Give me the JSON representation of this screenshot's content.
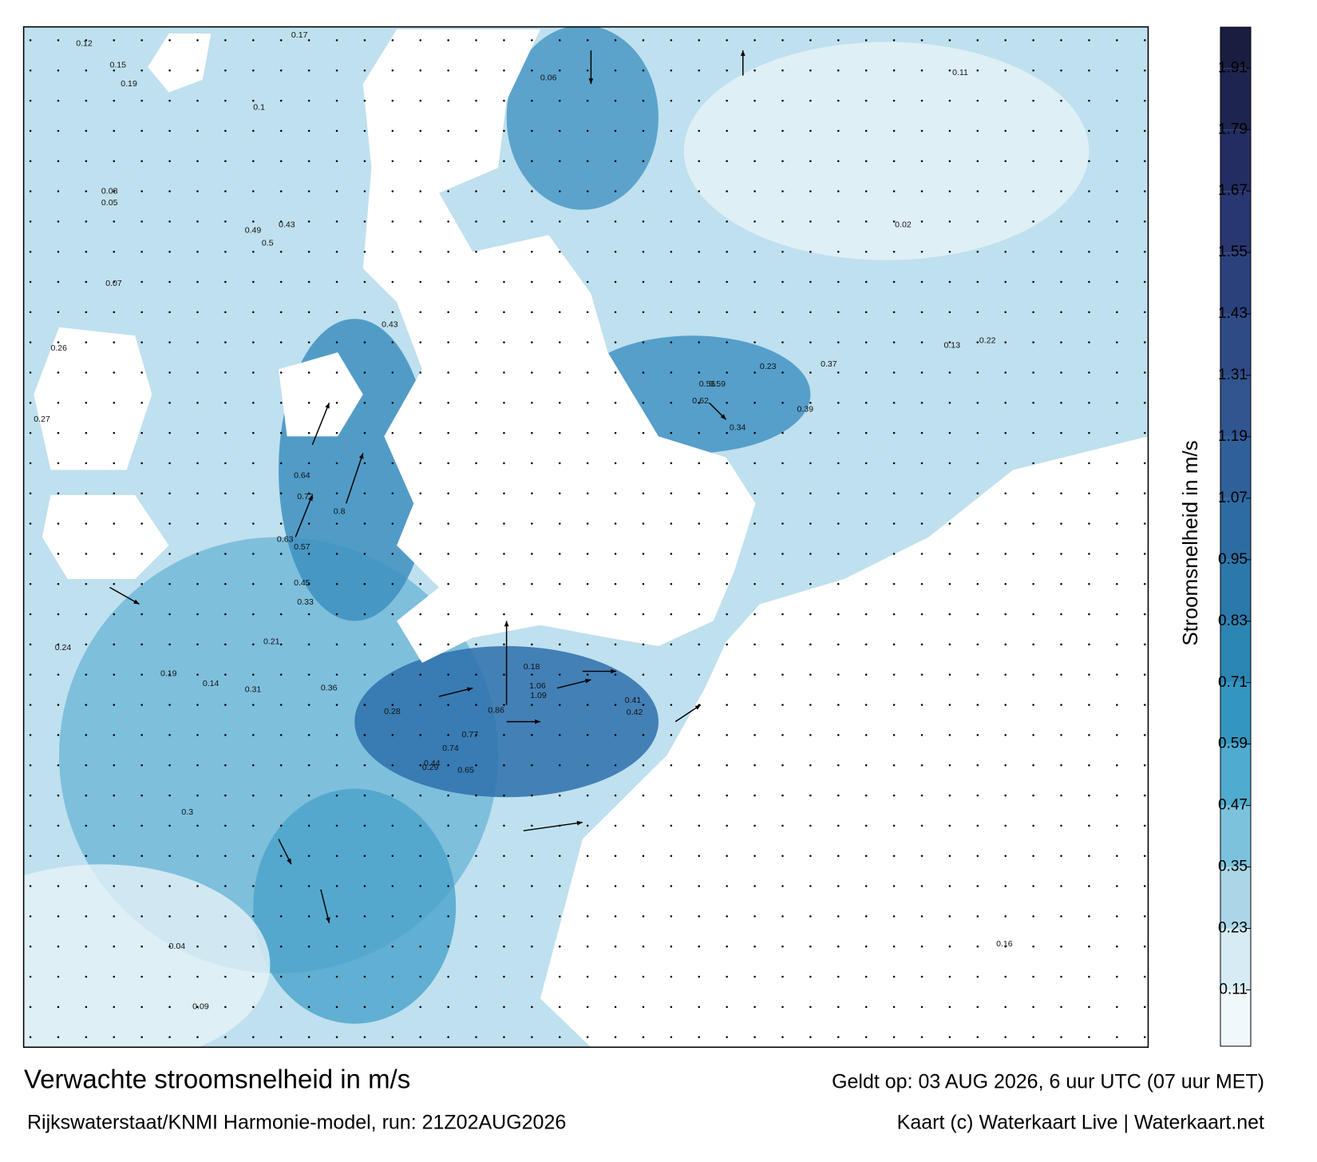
{
  "title": "Verwachte stroomsnelheid in m/s",
  "subtitle": "Rijkswaterstaat/KNMI Harmonie-model, run: 21Z02AUG2026",
  "valid_time": "Geldt op: 03 AUG 2026, 6 uur UTC (07 uur MET)",
  "credit": "Kaart (c) Waterkaart Live | Waterkaart.net",
  "colorbar": {
    "label": "Stroomsnelheid in m/s",
    "lim": [
      0,
      1.99
    ],
    "ticks": [
      0.11,
      0.23,
      0.35,
      0.47,
      0.59,
      0.71,
      0.83,
      0.95,
      1.07,
      1.19,
      1.31,
      1.43,
      1.55,
      1.67,
      1.79,
      1.91
    ],
    "band_colors": [
      "#f1f8fb",
      "#d6ebf3",
      "#aad6e7",
      "#7cc2dc",
      "#4fabcf",
      "#3296c0",
      "#2b86b3",
      "#2b78aa",
      "#2d6ca2",
      "#2f6099",
      "#30558f",
      "#2e4b86",
      "#2b417c",
      "#283770",
      "#232d62",
      "#1d2450",
      "#191d40"
    ]
  },
  "map": {
    "speed_labels": [
      "0.12",
      "0.15",
      "0.19",
      "0.1",
      "0.17",
      "0.05",
      "0.07",
      "0.26",
      "0.27",
      "0.24",
      "0.49",
      "0.5",
      "0.43",
      "0.64",
      "0.73",
      "0.8",
      "0.63",
      "0.57",
      "0.45",
      "0.33",
      "0.21",
      "0.19",
      "0.14",
      "0.18",
      "0.31",
      "0.36",
      "0.3",
      "0.29",
      "0.28",
      "0.44",
      "0.65",
      "0.74",
      "0.77",
      "0.86",
      "1.06",
      "1.09",
      "0.41",
      "0.42",
      "0.62",
      "0.56",
      "0.59",
      "0.39",
      "0.34",
      "0.37",
      "0.43",
      "0.23",
      "0.16",
      "0.04",
      "0.09",
      "0.06",
      "0.02",
      "0.13",
      "0.11",
      "0.08",
      "0.22"
    ]
  }
}
